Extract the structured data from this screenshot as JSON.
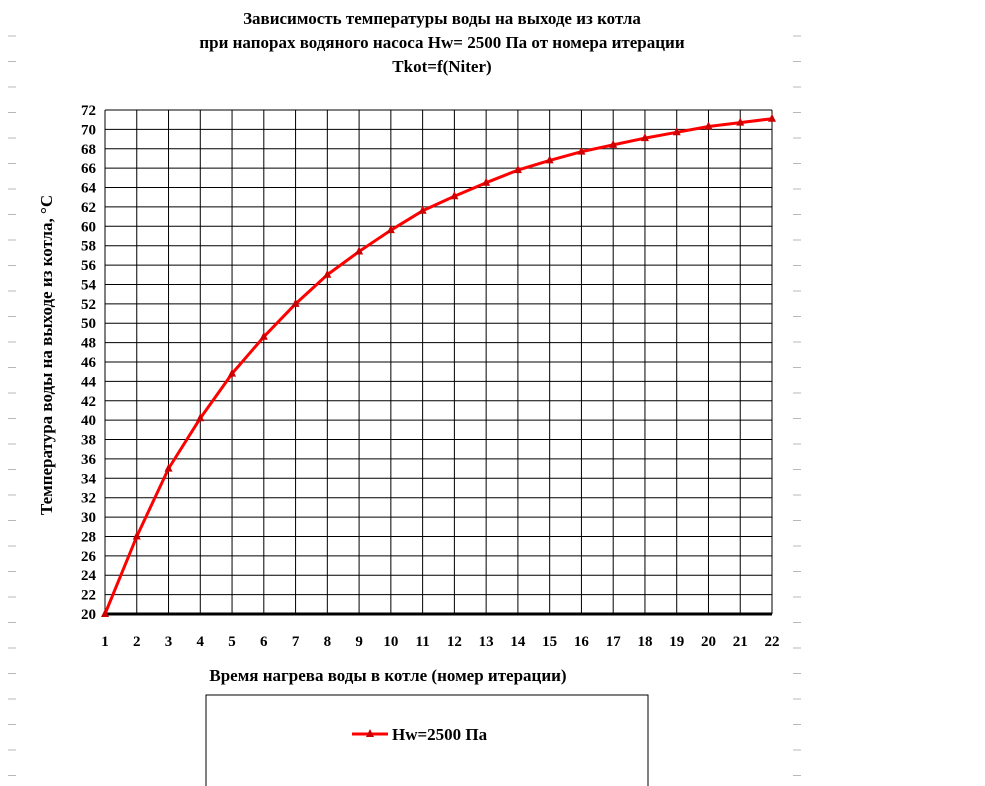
{
  "chart_data": {
    "type": "line",
    "title_lines": [
      "Зависимость температуры воды на выходе из котла",
      "при напорах водяного насоса Hw=  2500 Па от номера итерации",
      "Tkot=f(Niter)"
    ],
    "xlabel": "Время нагрева воды в котле (номер итерации)",
    "ylabel": "Температура  воды на выходе из котла, °С",
    "x": [
      1,
      2,
      3,
      4,
      5,
      6,
      7,
      8,
      9,
      10,
      11,
      12,
      13,
      14,
      15,
      16,
      17,
      18,
      19,
      20,
      21,
      22
    ],
    "series": [
      {
        "name": "Hw=2500 Па",
        "color": "#ff0000",
        "marker": "triangle",
        "values": [
          20,
          28,
          35,
          40.2,
          44.8,
          48.6,
          52,
          55,
          57.4,
          59.6,
          61.6,
          63.1,
          64.5,
          65.8,
          66.8,
          67.7,
          68.4,
          69.1,
          69.7,
          70.3,
          70.7,
          71.1
        ]
      }
    ],
    "xlim": [
      1,
      22
    ],
    "ylim": [
      20,
      72
    ],
    "yticks": [
      20,
      22,
      24,
      26,
      28,
      30,
      32,
      34,
      36,
      38,
      40,
      42,
      44,
      46,
      48,
      50,
      52,
      54,
      56,
      58,
      60,
      62,
      64,
      66,
      68,
      70,
      72
    ],
    "grid": true,
    "legend_position": "bottom"
  }
}
